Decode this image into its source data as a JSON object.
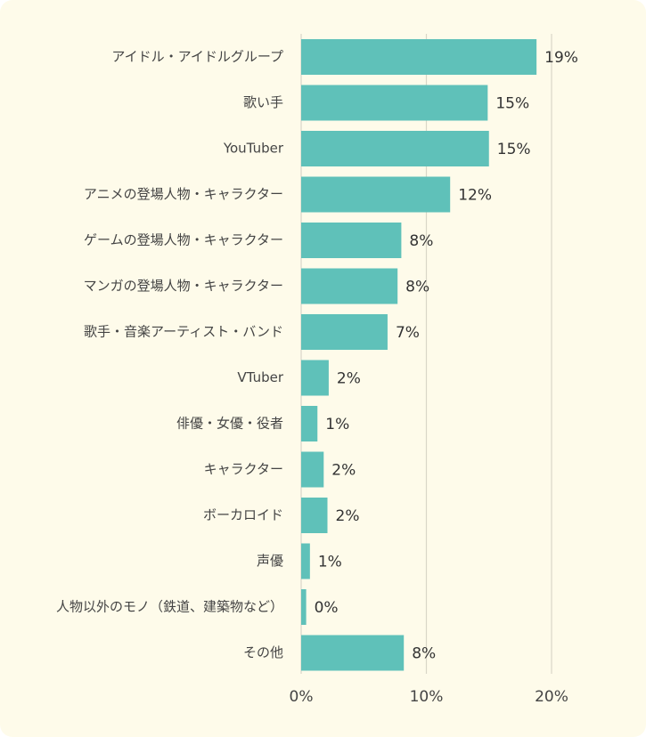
{
  "chart_data": {
    "type": "bar",
    "orientation": "horizontal",
    "categories": [
      "アイドル・アイドルグループ",
      "歌い手",
      "YouTuber",
      "アニメの登場人物・キャラクター",
      "ゲームの登場人物・キャラクター",
      "マンガの登場人物・キャラクター",
      "歌手・音楽アーティスト・バンド",
      "VTuber",
      "俳優・女優・役者",
      "キャラクター",
      "ボーカロイド",
      "声優",
      "人物以外のモノ（鉄道、建築物など）",
      "その他"
    ],
    "values": [
      18.8,
      14.9,
      15.0,
      11.9,
      8.0,
      7.7,
      6.9,
      2.2,
      1.3,
      1.8,
      2.1,
      0.7,
      0.4,
      8.2
    ],
    "value_labels": [
      "19%",
      "15%",
      "15%",
      "12%",
      "8%",
      "8%",
      "7%",
      "2%",
      "1%",
      "2%",
      "2%",
      "1%",
      "0%",
      "8%"
    ],
    "xlim": [
      0,
      20
    ],
    "x_ticks": [
      0,
      10,
      20
    ],
    "x_tick_labels": [
      "0%",
      "10%",
      "20%"
    ],
    "grid": true,
    "bar_color": "#5fc1b9",
    "background_color": "#fefbea",
    "grid_color": "#d9d6c8"
  }
}
